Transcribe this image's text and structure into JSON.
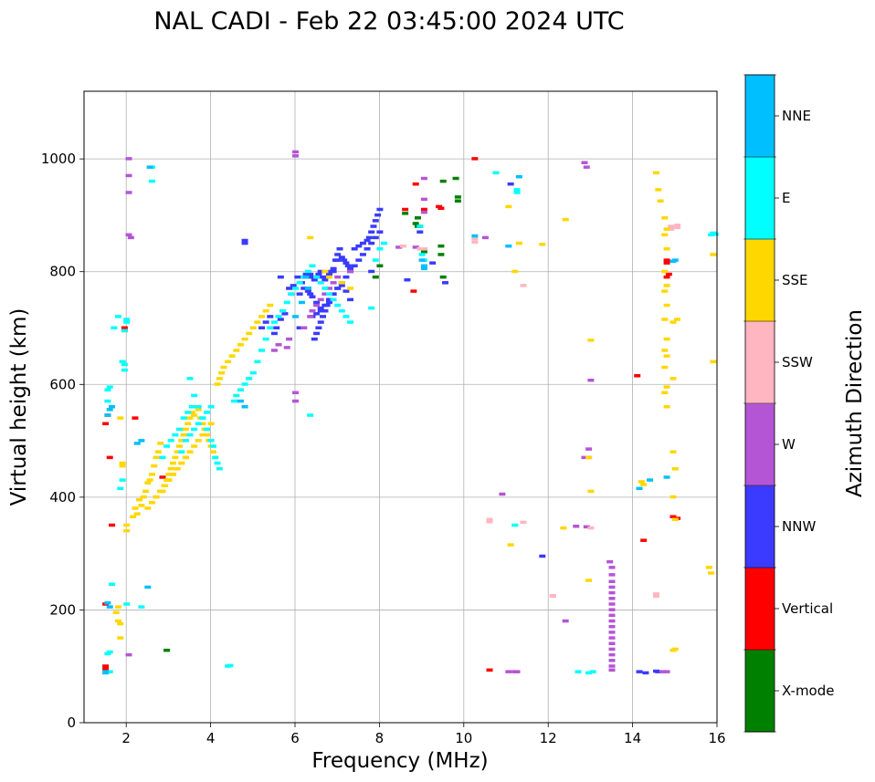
{
  "chart_data": {
    "type": "scatter",
    "title": "NAL CADI - Feb 22 03:45:00 2024 UTC",
    "xlabel": "Frequency (MHz)",
    "ylabel": "Virtual height (km)",
    "xlim": [
      1,
      16
    ],
    "ylim": [
      0,
      1120
    ],
    "xticks": [
      2,
      4,
      6,
      8,
      10,
      12,
      14,
      16
    ],
    "yticks": [
      0,
      200,
      400,
      600,
      800,
      1000
    ],
    "grid": true,
    "colorbar": {
      "title": "Azimuth Direction",
      "categories": [
        {
          "name": "X-mode",
          "color": "#008000"
        },
        {
          "name": "Vertical",
          "color": "#ff0000"
        },
        {
          "name": "NNW",
          "color": "#3b3bff"
        },
        {
          "name": "W",
          "color": "#b455d6"
        },
        {
          "name": "SSW",
          "color": "#ffb6c1"
        },
        {
          "name": "SSE",
          "color": "#ffd700"
        },
        {
          "name": "E",
          "color": "#00ffff"
        },
        {
          "name": "NNE",
          "color": "#00bfff"
        }
      ]
    },
    "echoes": [
      {
        "dir": "Vertical",
        "f": [
          1.5,
          1.5,
          1.5,
          1.55,
          1.5,
          1.65,
          1.95,
          1.95,
          1.6,
          2.2,
          2.85,
          8.85,
          8.8,
          8.6,
          9.05,
          10.25,
          10.6,
          14.25,
          14.1,
          14.8,
          14.8,
          14.85,
          14.8,
          14.95,
          15.05,
          9.4,
          9.45
        ],
        "h": [
          100,
          95,
          210,
          545,
          530,
          350,
          700,
          695,
          470,
          540,
          435,
          955,
          765,
          910,
          910,
          1000,
          93,
          323,
          615,
          820,
          815,
          795,
          790,
          365,
          362,
          915,
          912
        ]
      },
      {
        "dir": "X-mode",
        "f": [
          2.95,
          8.6,
          8.9,
          8.9,
          9.05,
          9.05,
          9.45,
          9.45,
          9.5,
          9.85,
          9.85,
          9.8,
          9.5,
          7.9,
          8.0,
          8.85,
          8.95
        ],
        "h": [
          128,
          903,
          895,
          880,
          835,
          840,
          830,
          845,
          790,
          925,
          932,
          965,
          960,
          790,
          810,
          885,
          880
        ]
      },
      {
        "dir": "NNW",
        "f": [
          4.8,
          4.8,
          5.65,
          5.2,
          5.3,
          5.4,
          5.5,
          5.55,
          5.65,
          5.7,
          5.75,
          5.85,
          5.9,
          5.95,
          6.05,
          6.15,
          6.2,
          6.25,
          6.3,
          6.35,
          6.4,
          6.45,
          6.5,
          6.55,
          6.6,
          6.65,
          6.7,
          6.75,
          6.8,
          6.85,
          6.9,
          6.95,
          7.0,
          7.05,
          7.1,
          7.15,
          7.2,
          7.25,
          7.3,
          7.4,
          7.5,
          7.6,
          7.7,
          7.75,
          7.8,
          7.85,
          7.9,
          7.95,
          8.0,
          6.1,
          6.2,
          6.3,
          6.4,
          6.5,
          6.6,
          6.7,
          6.8,
          6.9,
          7.0,
          7.1,
          7.2,
          7.3,
          6.1,
          6.4,
          6.5,
          6.6,
          6.7,
          6.8,
          6.9,
          7.0,
          7.1,
          7.2,
          7.3,
          7.4,
          7.6,
          7.7,
          7.8,
          7.9,
          8.0,
          6.45,
          6.5,
          6.55,
          6.6,
          6.65,
          6.7,
          6.75,
          6.8,
          8.65,
          8.95,
          9.25,
          9.55,
          11.1,
          11.85,
          14.15,
          14.3,
          14.55,
          14.6,
          6.9,
          7.0,
          6.3,
          6.35,
          7.8,
          7.5
        ],
        "h": [
          850,
          855,
          790,
          700,
          710,
          720,
          690,
          700,
          715,
          730,
          725,
          770,
          760,
          775,
          790,
          780,
          790,
          795,
          790,
          795,
          790,
          785,
          790,
          795,
          800,
          790,
          785,
          790,
          795,
          800,
          805,
          820,
          830,
          840,
          825,
          820,
          815,
          810,
          805,
          840,
          845,
          850,
          855,
          860,
          870,
          880,
          890,
          900,
          910,
          760,
          770,
          765,
          755,
          745,
          735,
          730,
          745,
          760,
          770,
          775,
          765,
          750,
          700,
          720,
          725,
          730,
          740,
          750,
          760,
          770,
          780,
          790,
          800,
          810,
          830,
          840,
          850,
          860,
          870,
          680,
          690,
          700,
          710,
          720,
          730,
          740,
          750,
          785,
          870,
          815,
          780,
          955,
          295,
          90,
          88,
          91,
          90,
          800,
          820,
          770,
          760,
          800,
          820
        ]
      },
      {
        "dir": "W",
        "f": [
          2.05,
          2.05,
          2.05,
          2.1,
          2.05,
          2.05,
          6.0,
          6.0,
          6.0,
          6.0,
          5.5,
          5.6,
          5.8,
          5.85,
          6.2,
          6.35,
          6.4,
          6.5,
          6.6,
          6.7,
          6.8,
          6.9,
          7.0,
          7.3,
          8.45,
          8.85,
          9.05,
          9.05,
          9.05,
          11.05,
          11.2,
          11.25,
          10.9,
          10.5,
          12.85,
          12.9,
          12.95,
          12.95,
          13.0,
          12.85,
          12.4,
          12.65,
          12.9,
          13.45,
          13.5,
          13.5,
          13.5,
          13.5,
          13.5,
          13.5,
          13.5,
          13.5,
          13.5,
          13.5,
          13.5,
          13.5,
          13.5,
          13.5,
          13.5,
          13.5,
          13.5,
          13.5,
          13.5,
          14.7,
          14.8
        ],
        "h": [
          1000,
          970,
          940,
          860,
          865,
          120,
          1012,
          1005,
          585,
          570,
          660,
          670,
          665,
          680,
          700,
          720,
          730,
          740,
          750,
          760,
          770,
          780,
          790,
          800,
          843,
          843,
          965,
          928,
          905,
          90,
          90,
          90,
          405,
          860,
          993,
          985,
          485,
          470,
          607,
          470,
          180,
          348,
          347,
          285,
          275,
          262,
          250,
          240,
          230,
          220,
          210,
          200,
          190,
          180,
          170,
          160,
          150,
          140,
          130,
          120,
          110,
          100,
          93,
          90,
          90
        ]
      },
      {
        "dir": "SSW",
        "f": [
          8.95,
          9.05,
          10.25,
          10.25,
          10.6,
          10.6,
          11.4,
          11.4,
          12.1,
          12.1,
          13.0,
          14.55,
          14.55,
          14.9,
          14.9,
          15.05,
          15.05,
          8.55
        ],
        "h": [
          840,
          840,
          858,
          852,
          360,
          356,
          775,
          355,
          225,
          224,
          345,
          228,
          224,
          880,
          875,
          882,
          878,
          845
        ]
      },
      {
        "dir": "SSE",
        "f": [
          1.75,
          1.8,
          1.8,
          1.85,
          1.85,
          1.85,
          1.9,
          1.9,
          2.0,
          2.0,
          2.15,
          2.2,
          2.25,
          2.3,
          2.35,
          2.4,
          2.45,
          2.5,
          2.55,
          2.6,
          2.65,
          2.7,
          2.75,
          2.8,
          2.85,
          2.9,
          2.95,
          3.0,
          3.05,
          3.1,
          3.15,
          3.2,
          3.25,
          3.3,
          3.35,
          3.4,
          3.45,
          3.5,
          3.55,
          3.6,
          3.65,
          3.7,
          3.75,
          3.8,
          3.85,
          3.9,
          3.95,
          4.0,
          4.05,
          4.1,
          4.15,
          4.2,
          2.6,
          2.7,
          2.8,
          2.9,
          3.0,
          3.1,
          3.2,
          3.3,
          3.4,
          3.5,
          3.6,
          3.7,
          3.8,
          3.9,
          4.0,
          2.5,
          2.6,
          2.7,
          2.8,
          2.9,
          3.0,
          3.1,
          3.2,
          3.3,
          3.4,
          3.5,
          4.25,
          4.3,
          4.4,
          4.5,
          4.6,
          4.7,
          4.8,
          4.9,
          5.0,
          5.1,
          5.2,
          5.3,
          5.4,
          6.35,
          6.7,
          6.8,
          7.1,
          7.3,
          11.05,
          11.2,
          11.1,
          11.3,
          11.85,
          12.4,
          12.35,
          12.95,
          13.0,
          12.95,
          13.0,
          14.2,
          14.25,
          14.55,
          14.6,
          14.65,
          14.75,
          14.8,
          14.75,
          14.8,
          14.75,
          14.8,
          14.75,
          14.8,
          14.75,
          14.8,
          14.75,
          14.8,
          14.75,
          14.8,
          14.75,
          14.8,
          14.95,
          15.0,
          14.95,
          15.0,
          15.05,
          14.95,
          14.95,
          15.0,
          14.95,
          15.0,
          15.8,
          15.85,
          15.9,
          15.9
        ],
        "h": [
          195,
          180,
          205,
          175,
          150,
          540,
          455,
          460,
          350,
          340,
          365,
          380,
          370,
          395,
          385,
          400,
          410,
          425,
          430,
          440,
          455,
          470,
          480,
          495,
          410,
          420,
          430,
          440,
          450,
          460,
          470,
          480,
          490,
          500,
          510,
          520,
          530,
          540,
          550,
          545,
          560,
          555,
          540,
          530,
          520,
          510,
          500,
          490,
          480,
          470,
          600,
          610,
          390,
          400,
          410,
          420,
          430,
          440,
          450,
          460,
          470,
          480,
          490,
          500,
          510,
          520,
          530,
          380,
          390,
          400,
          410,
          420,
          430,
          440,
          450,
          460,
          470,
          480,
          620,
          630,
          640,
          650,
          660,
          670,
          680,
          690,
          700,
          710,
          720,
          730,
          740,
          860,
          800,
          790,
          780,
          770,
          915,
          800,
          315,
          850,
          848,
          892,
          345,
          470,
          678,
          252,
          410,
          427,
          422,
          975,
          945,
          925,
          895,
          875,
          865,
          840,
          800,
          775,
          765,
          740,
          715,
          680,
          660,
          650,
          630,
          595,
          585,
          560,
          480,
          450,
          400,
          450,
          715,
          710,
          610,
          130,
          128,
          360,
          275,
          265,
          830,
          640,
          590,
          591
        ]
      },
      {
        "dir": "E",
        "f": [
          1.55,
          1.6,
          1.65,
          1.6,
          1.7,
          1.8,
          1.85,
          1.9,
          1.9,
          1.95,
          1.95,
          2.0,
          2.0,
          1.55,
          1.6,
          1.55,
          1.95,
          2.0,
          2.35,
          2.6,
          2.6,
          3.5,
          3.6,
          3.7,
          3.8,
          3.9,
          4.0,
          4.05,
          4.1,
          4.15,
          4.2,
          3.3,
          3.4,
          3.5,
          3.6,
          3.7,
          3.8,
          3.9,
          4.0,
          2.85,
          2.95,
          3.05,
          3.15,
          3.25,
          3.35,
          3.45,
          3.55,
          4.55,
          4.6,
          4.7,
          4.8,
          4.9,
          5.0,
          5.1,
          5.2,
          5.3,
          5.4,
          5.5,
          5.6,
          5.7,
          5.8,
          5.9,
          6.0,
          6.1,
          6.2,
          6.3,
          6.4,
          6.5,
          6.6,
          6.7,
          6.8,
          6.9,
          7.0,
          7.1,
          7.2,
          7.3,
          6.35,
          7.8,
          7.9,
          8.0,
          8.1,
          9.05,
          9.0,
          8.95,
          10.75,
          11.2,
          11.25,
          11.25,
          12.7,
          12.95,
          13.05,
          15.85,
          15.9,
          15.95,
          4.4,
          4.45
        ],
        "h": [
          122,
          125,
          245,
          90,
          700,
          720,
          415,
          430,
          640,
          635,
          695,
          710,
          715,
          590,
          595,
          570,
          625,
          210,
          205,
          985,
          960,
          610,
          580,
          560,
          540,
          520,
          500,
          490,
          470,
          460,
          450,
          480,
          500,
          510,
          520,
          530,
          540,
          550,
          560,
          470,
          490,
          500,
          510,
          520,
          540,
          550,
          560,
          570,
          580,
          590,
          600,
          610,
          620,
          640,
          660,
          680,
          700,
          710,
          720,
          730,
          745,
          760,
          770,
          780,
          790,
          800,
          810,
          790,
          780,
          770,
          760,
          750,
          740,
          730,
          720,
          710,
          545,
          735,
          820,
          840,
          850,
          820,
          830,
          880,
          975,
          350,
          945,
          940,
          90,
          88,
          90,
          865,
          868,
          866,
          100,
          101
        ]
      },
      {
        "dir": "NNE",
        "f": [
          1.5,
          1.5,
          1.55,
          1.6,
          1.65,
          2.25,
          2.35,
          2.5,
          2.55,
          4.7,
          4.8,
          6.0,
          6.15,
          6.25,
          6.3,
          9.05,
          9.05,
          9.0,
          10.25,
          11.05,
          11.3,
          14.15,
          14.4,
          14.8,
          14.95,
          15.0,
          1.55,
          1.6
        ],
        "h": [
          90,
          88,
          212,
          205,
          560,
          495,
          500,
          240,
          985,
          570,
          560,
          720,
          745,
          790,
          770,
          810,
          805,
          820,
          863,
          845,
          968,
          415,
          430,
          435,
          818,
          820,
          545,
          555
        ]
      }
    ]
  }
}
